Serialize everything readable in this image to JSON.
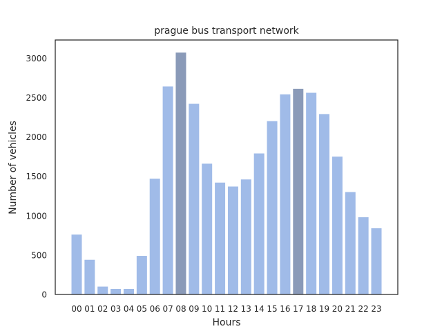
{
  "chart_data": {
    "type": "bar",
    "title": "prague bus transport network",
    "xlabel": "Hours",
    "ylabel": "Number of vehicles",
    "categories": [
      "00",
      "01",
      "02",
      "03",
      "04",
      "05",
      "06",
      "07",
      "08",
      "09",
      "10",
      "11",
      "12",
      "13",
      "14",
      "15",
      "16",
      "17",
      "18",
      "19",
      "20",
      "21",
      "22",
      "23"
    ],
    "values": [
      760,
      440,
      100,
      70,
      70,
      490,
      1470,
      2640,
      3070,
      2420,
      1660,
      1420,
      1370,
      1460,
      1790,
      2200,
      2540,
      2610,
      2560,
      2290,
      1750,
      1300,
      980,
      840
    ],
    "highlighted": [
      "08",
      "17"
    ],
    "ylim": [
      0,
      3230
    ],
    "yticks": [
      0,
      500,
      1000,
      1500,
      2000,
      2500,
      3000
    ],
    "grid": false,
    "colors": {
      "bar": "#a0bbe8",
      "highlight": "#8a9ab8",
      "axis": "#262626"
    }
  }
}
